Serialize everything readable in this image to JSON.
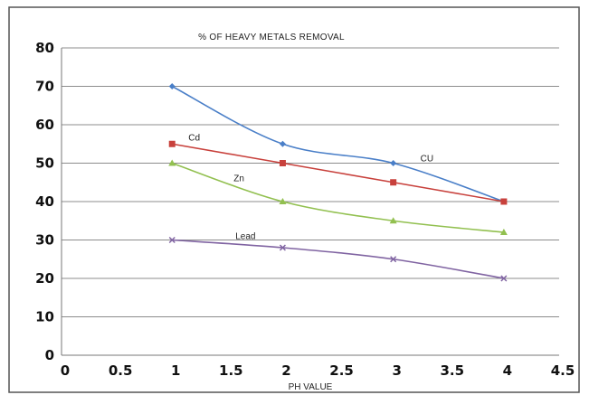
{
  "chart_data": {
    "type": "line",
    "title": "% OF HEAVY METALS REMOVAL",
    "xlabel": "PH VALUE",
    "ylabel": "",
    "xlim": [
      0,
      4.5
    ],
    "ylim": [
      0,
      80
    ],
    "x_ticks": [
      "0",
      "0.5",
      "1",
      "1.5",
      "2",
      "2.5",
      "3",
      "3.5",
      "4",
      "4.5"
    ],
    "y_ticks": [
      "0",
      "10",
      "20",
      "30",
      "40",
      "50",
      "60",
      "70",
      "80"
    ],
    "grid": "horizontal",
    "series": [
      {
        "name": "CU",
        "color": "#4a7fc8",
        "marker": "diamond",
        "x": [
          1,
          2,
          3,
          4
        ],
        "values": [
          70,
          55,
          50,
          40
        ]
      },
      {
        "name": "Cd",
        "color": "#c8413c",
        "marker": "square",
        "x": [
          1,
          2,
          3,
          4
        ],
        "values": [
          55,
          50,
          45,
          40
        ]
      },
      {
        "name": "Zn",
        "color": "#92c050",
        "marker": "triangle",
        "x": [
          1,
          2,
          3,
          4
        ],
        "values": [
          50,
          40,
          35,
          32
        ]
      },
      {
        "name": "Lead",
        "color": "#8064a2",
        "marker": "x",
        "x": [
          1,
          2,
          3,
          4
        ],
        "values": [
          30,
          28,
          25,
          20
        ]
      }
    ]
  }
}
